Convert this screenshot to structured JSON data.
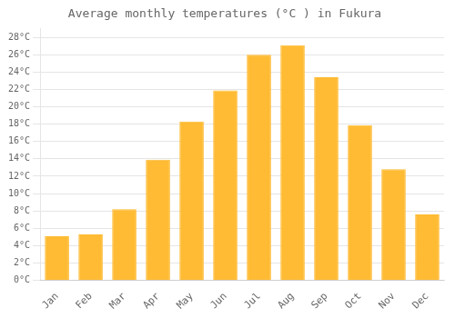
{
  "chart_data": {
    "type": "bar",
    "title": "Average monthly temperatures (°C ) in Fukura",
    "categories": [
      "Jan",
      "Feb",
      "Mar",
      "Apr",
      "May",
      "Jun",
      "Jul",
      "Aug",
      "Sep",
      "Oct",
      "Nov",
      "Dec"
    ],
    "values": [
      5.1,
      5.3,
      8.2,
      13.9,
      18.3,
      21.9,
      26.0,
      27.1,
      23.4,
      17.9,
      12.8,
      7.6
    ],
    "color": "#FFBB33",
    "ylim": [
      0,
      29
    ],
    "yticks": [
      {
        "value": 0,
        "label": "0°C"
      },
      {
        "value": 2,
        "label": "2°C"
      },
      {
        "value": 4,
        "label": "4°C"
      },
      {
        "value": 6,
        "label": "6°C"
      },
      {
        "value": 8,
        "label": "8°C"
      },
      {
        "value": 10,
        "label": "10°C"
      },
      {
        "value": 12,
        "label": "12°C"
      },
      {
        "value": 14,
        "label": "14°C"
      },
      {
        "value": 16,
        "label": "16°C"
      },
      {
        "value": 18,
        "label": "18°C"
      },
      {
        "value": 20,
        "label": "20°C"
      },
      {
        "value": 22,
        "label": "22°C"
      },
      {
        "value": 24,
        "label": "24°C"
      },
      {
        "value": 26,
        "label": "26°C"
      },
      {
        "value": 28,
        "label": "28°C"
      }
    ],
    "grid": true
  }
}
